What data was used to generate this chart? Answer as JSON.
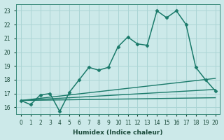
{
  "xlabel": "Humidex (Indice chaleur)",
  "xlim": [
    -0.5,
    20.5
  ],
  "ylim": [
    15.5,
    23.5
  ],
  "yticks": [
    16,
    17,
    18,
    19,
    20,
    21,
    22,
    23
  ],
  "xticks": [
    0,
    1,
    2,
    3,
    4,
    5,
    6,
    7,
    8,
    9,
    10,
    11,
    12,
    13,
    14,
    15,
    16,
    17,
    18,
    19,
    20
  ],
  "bg_color": "#cce9e9",
  "grid_color": "#aad4d4",
  "line_color": "#1a7a6a",
  "series": [
    {
      "x": [
        0,
        1,
        2,
        3,
        4,
        5,
        6,
        7,
        8,
        9,
        10,
        11,
        12,
        13,
        14,
        15,
        16,
        17,
        18,
        19,
        20
      ],
      "y": [
        16.5,
        16.2,
        16.9,
        17.0,
        15.7,
        17.1,
        18.0,
        18.9,
        18.7,
        18.9,
        20.4,
        21.1,
        20.6,
        20.5,
        23.0,
        22.5,
        23.0,
        22.0,
        18.9,
        18.0,
        17.2
      ],
      "marker": "D",
      "markersize": 2.5,
      "linewidth": 1.1
    },
    {
      "x": [
        0,
        1,
        2,
        3,
        4,
        5,
        6,
        7,
        8,
        9,
        10,
        11,
        12,
        13,
        14,
        15,
        16,
        17,
        18,
        19,
        20
      ],
      "y": [
        16.5,
        16.58,
        16.66,
        16.74,
        16.82,
        16.9,
        16.98,
        17.06,
        17.14,
        17.22,
        17.3,
        17.38,
        17.46,
        17.54,
        17.62,
        17.7,
        17.78,
        17.86,
        17.94,
        18.02,
        18.1
      ],
      "marker": null,
      "markersize": 0,
      "linewidth": 1.0
    },
    {
      "x": [
        0,
        1,
        2,
        3,
        4,
        5,
        6,
        7,
        8,
        9,
        10,
        11,
        12,
        13,
        14,
        15,
        16,
        17,
        18,
        19,
        20
      ],
      "y": [
        16.5,
        16.54,
        16.58,
        16.62,
        16.66,
        16.7,
        16.74,
        16.78,
        16.82,
        16.86,
        16.9,
        16.94,
        16.98,
        17.02,
        17.06,
        17.1,
        17.14,
        17.18,
        17.22,
        17.26,
        17.3
      ],
      "marker": null,
      "markersize": 0,
      "linewidth": 1.0
    },
    {
      "x": [
        0,
        1,
        2,
        3,
        4,
        5,
        6,
        7,
        8,
        9,
        10,
        11,
        12,
        13,
        14,
        15,
        16,
        17,
        18,
        19,
        20
      ],
      "y": [
        16.5,
        16.51,
        16.52,
        16.53,
        16.54,
        16.55,
        16.56,
        16.57,
        16.58,
        16.59,
        16.6,
        16.61,
        16.62,
        16.63,
        16.64,
        16.65,
        16.66,
        16.67,
        16.68,
        16.69,
        16.7
      ],
      "marker": null,
      "markersize": 0,
      "linewidth": 1.0
    }
  ]
}
